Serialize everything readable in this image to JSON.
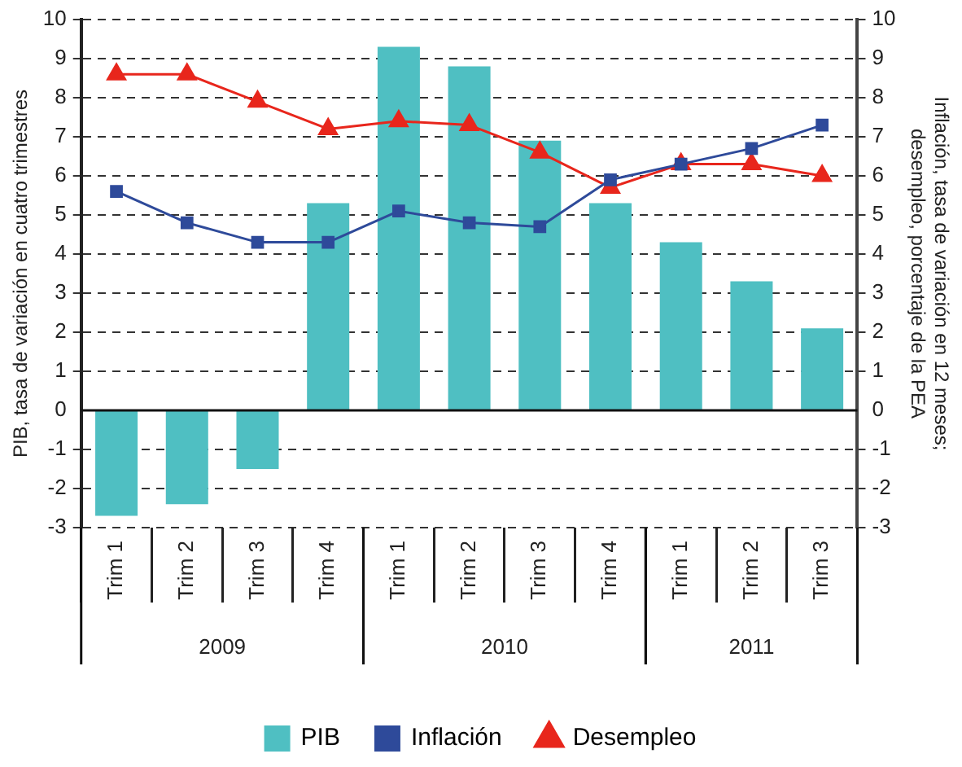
{
  "chart_data": {
    "type": "bar",
    "ylabel": "PIB, tasa de variación en cuatro trimestres",
    "y2label": "Inflación, tasa de variación en 12 meses; desempleo, porcentaje de la PEA",
    "categories": [
      "Trim 1",
      "Trim 2",
      "Trim 3",
      "Trim 4",
      "Trim 1",
      "Trim 2",
      "Trim 3",
      "Trim 4",
      "Trim 1",
      "Trim 2",
      "Trim 3"
    ],
    "annotations": [
      "2009",
      "2010",
      "2011"
    ],
    "series": [
      {
        "name": "PIB",
        "color": "#4fbfc2",
        "values": [
          -2.7,
          -2.4,
          -1.5,
          5.3,
          9.3,
          8.8,
          6.9,
          5.3,
          4.3,
          3.3,
          2.1
        ]
      },
      {
        "name": "Inflación",
        "type": "line",
        "axis": "y2",
        "color": "#2e4a9a",
        "marker": "square",
        "values": [
          5.6,
          4.8,
          4.3,
          4.3,
          5.1,
          4.8,
          4.7,
          5.9,
          6.3,
          6.7,
          7.3
        ]
      },
      {
        "name": "Desempleo",
        "type": "line",
        "axis": "y2",
        "color": "#e8261c",
        "marker": "triangle",
        "values": [
          8.6,
          8.6,
          7.9,
          7.2,
          7.4,
          7.3,
          6.6,
          5.7,
          6.3,
          6.3,
          6.0
        ]
      }
    ],
    "ylim": [
      -3,
      10
    ],
    "yticks": [
      -3,
      -2,
      -1,
      0,
      1,
      2,
      3,
      4,
      5,
      6,
      7,
      8,
      9,
      10
    ],
    "y2lim": [
      -3,
      10
    ],
    "y2ticks": [
      -3,
      -2,
      -1,
      0,
      1,
      2,
      3,
      4,
      5,
      6,
      7,
      8,
      9,
      10
    ],
    "grid": "y",
    "legend": "bottom"
  }
}
